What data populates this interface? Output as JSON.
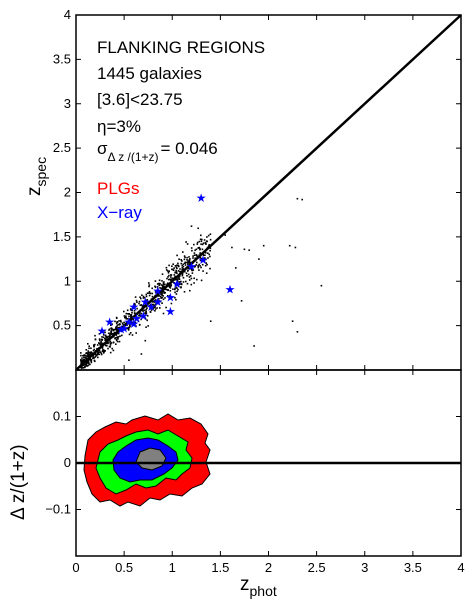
{
  "chart_data": [
    {
      "type": "scatter",
      "title": "",
      "xlabel": "",
      "ylabel": "z",
      "ylabel_sub": "spec",
      "xlim": [
        0,
        4
      ],
      "ylim": [
        0,
        4
      ],
      "xticks": [
        "0",
        "0.5",
        "1",
        "1.5",
        "2",
        "2.5",
        "3",
        "3.5",
        "4"
      ],
      "yticks": [
        "0.5",
        "1",
        "1.5",
        "2",
        "2.5",
        "3",
        "3.5",
        "4"
      ],
      "annotations": [
        "FLANKING REGIONS",
        "1445 galaxies",
        "[3.6]<23.75",
        "η=3%"
      ],
      "sigma_label": {
        "symbol": "σ",
        "subscript": "Δ z /(1+z)",
        "value": "= 0.046"
      },
      "legend": {
        "position": "top-left",
        "entries": [
          {
            "label": "PLGs",
            "color": "#ff0000"
          },
          {
            "label": "X−ray",
            "color": "#0000ff"
          }
        ]
      },
      "reference_line": {
        "x": [
          0,
          4
        ],
        "y": [
          0,
          4
        ],
        "color": "#000000"
      },
      "series": [
        {
          "name": "X−ray",
          "marker": "star",
          "color": "#0000ff",
          "x": [
            1.3,
            1.6,
            1.32,
            1.2,
            1.05,
            0.98,
            0.85,
            0.78,
            0.72,
            0.7,
            0.63,
            0.6,
            0.55,
            0.5,
            0.47,
            0.35,
            0.27,
            0.98,
            0.85,
            0.6
          ],
          "y": [
            1.95,
            0.92,
            1.25,
            1.18,
            0.98,
            0.67,
            0.78,
            0.72,
            0.78,
            0.62,
            0.59,
            0.53,
            0.55,
            0.48,
            0.47,
            0.55,
            0.45,
            0.83,
            0.9,
            0.72
          ]
        }
      ]
    },
    {
      "type": "contour",
      "xlabel": "z",
      "xlabel_sub": "phot",
      "ylabel": "Δ z/(1+z)",
      "xlim": [
        0,
        4
      ],
      "ylim": [
        -0.2,
        0.2
      ],
      "xticks": [
        "0",
        "0.5",
        "1",
        "1.5",
        "2",
        "2.5",
        "3",
        "3.5",
        "4"
      ],
      "yticks": [
        "−0.1",
        "0",
        "0.1"
      ],
      "reference_line": {
        "y": 0,
        "color": "#000000"
      },
      "levels": [
        {
          "color": "#ff0000"
        },
        {
          "color": "#00ff00"
        },
        {
          "color": "#0000ff"
        },
        {
          "color": "#808080"
        }
      ]
    }
  ]
}
